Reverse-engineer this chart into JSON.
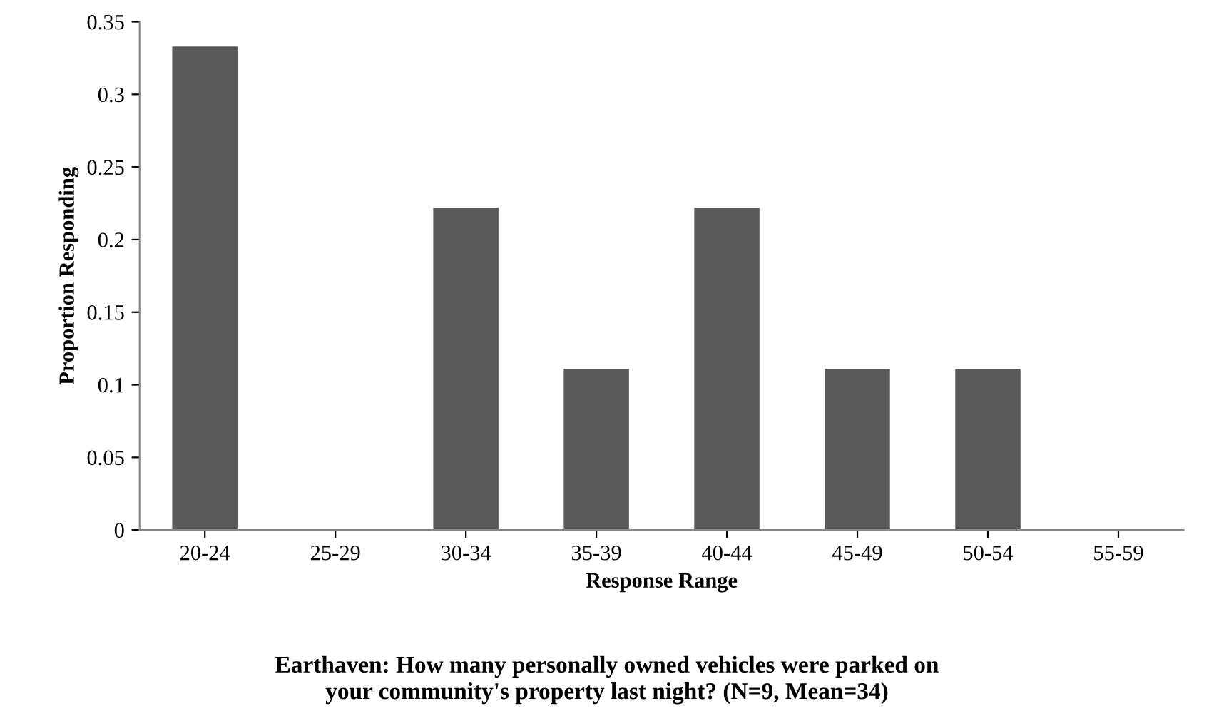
{
  "chart_data": {
    "type": "bar",
    "title": "Earthaven: How many personally owned vehicles were parked on\nyour community's property last night? (N=9, Mean=34)",
    "xlabel": "Response Range",
    "ylabel": "Proportion Responding",
    "categories": [
      "20-24",
      "25-29",
      "30-34",
      "35-39",
      "40-44",
      "45-49",
      "50-54",
      "55-59"
    ],
    "values": [
      0.333,
      0,
      0.222,
      0.111,
      0.222,
      0.111,
      0.111,
      0
    ],
    "color": "#595959",
    "ylim": [
      0,
      0.35
    ],
    "yticks": [
      {
        "value": 0,
        "label": "0"
      },
      0.05,
      0.1,
      0.15,
      0.2,
      0.25,
      0.3,
      0.35
    ],
    "grid": false,
    "legend": false
  }
}
